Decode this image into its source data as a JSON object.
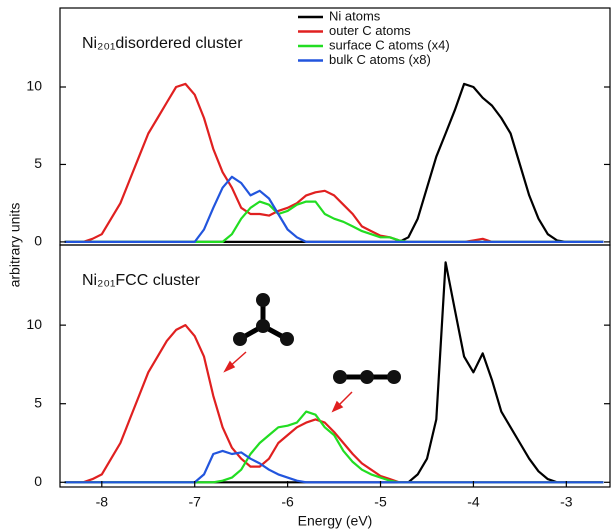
{
  "chart_data": [
    {
      "type": "line",
      "title": "Ni₂₀₁disordered cluster",
      "ylabel": "arbitrary units",
      "legend": "upper center",
      "xlim": [
        -8.45,
        -2.53
      ],
      "ylim": [
        -0.2,
        15.1
      ],
      "yticks": [
        0,
        5,
        10
      ],
      "x": [
        -8.4,
        -8.3,
        -8.2,
        -8.1,
        -8.0,
        -7.9,
        -7.8,
        -7.7,
        -7.6,
        -7.5,
        -7.4,
        -7.3,
        -7.2,
        -7.1,
        -7.0,
        -6.9,
        -6.8,
        -6.7,
        -6.6,
        -6.5,
        -6.4,
        -6.3,
        -6.2,
        -6.1,
        -6.0,
        -5.9,
        -5.8,
        -5.7,
        -5.6,
        -5.5,
        -5.4,
        -5.3,
        -5.2,
        -5.1,
        -5.0,
        -4.9,
        -4.8,
        -4.7,
        -4.6,
        -4.5,
        -4.4,
        -4.3,
        -4.2,
        -4.1,
        -4.0,
        -3.9,
        -3.8,
        -3.7,
        -3.6,
        -3.5,
        -3.4,
        -3.3,
        -3.2,
        -3.1,
        -3.0,
        -2.9,
        -2.8,
        -2.7,
        -2.6
      ],
      "series": [
        {
          "name": "Ni atoms",
          "color": "#000000",
          "values": [
            0,
            0,
            0,
            0,
            0,
            0,
            0,
            0,
            0,
            0,
            0,
            0,
            0,
            0,
            0,
            0,
            0,
            0,
            0,
            0,
            0,
            0,
            0,
            0,
            0,
            0,
            0,
            0,
            0,
            0,
            0,
            0,
            0,
            0,
            0,
            0,
            0,
            0.3,
            1.5,
            3.5,
            5.5,
            7,
            8.5,
            10.2,
            10,
            9.3,
            8.8,
            8,
            7,
            5,
            3,
            1.5,
            0.5,
            0.1,
            0,
            0,
            0,
            0,
            0
          ]
        },
        {
          "name": "outer C atoms",
          "color": "#e02020",
          "values": [
            0,
            0,
            0,
            0.2,
            0.5,
            1.5,
            2.5,
            4,
            5.5,
            7,
            8,
            9,
            10,
            10.2,
            9.5,
            8,
            6,
            4.5,
            3.5,
            2.2,
            1.8,
            1.8,
            1.7,
            2,
            2.2,
            2.5,
            3,
            3.2,
            3.3,
            3,
            2.4,
            1.8,
            1,
            0.7,
            0.4,
            0.3,
            0.1,
            0,
            0,
            0,
            0,
            0,
            0,
            0,
            0.1,
            0.2,
            0,
            0,
            0,
            0,
            0,
            0,
            0,
            0,
            0,
            0,
            0,
            0,
            0
          ]
        },
        {
          "name": "surface C atoms (x4)",
          "color": "#22dd22",
          "values": [
            0,
            0,
            0,
            0,
            0,
            0,
            0,
            0,
            0,
            0,
            0,
            0,
            0,
            0,
            0,
            0,
            0,
            0,
            0.5,
            1.5,
            2.2,
            2.6,
            2.4,
            1.8,
            2.0,
            2.4,
            2.6,
            2.6,
            1.8,
            1.5,
            1.3,
            1.0,
            0.7,
            0.5,
            0.3,
            0.3,
            0.1,
            0,
            0,
            0,
            0,
            0,
            0,
            0,
            0,
            0,
            0,
            0,
            0,
            0,
            0,
            0,
            0,
            0,
            0,
            0,
            0,
            0,
            0
          ]
        },
        {
          "name": "bulk C atoms (x8)",
          "color": "#2255dd",
          "values": [
            0,
            0,
            0,
            0,
            0,
            0,
            0,
            0,
            0,
            0,
            0,
            0,
            0,
            0,
            0,
            0.8,
            2.2,
            3.5,
            4.2,
            3.8,
            3.0,
            3.3,
            2.8,
            1.8,
            0.8,
            0.3,
            0,
            0,
            0,
            0,
            0,
            0,
            0,
            0,
            0,
            0,
            0,
            0,
            0,
            0,
            0,
            0,
            0,
            0,
            0,
            0,
            0,
            0,
            0,
            0,
            0,
            0,
            0,
            0,
            0,
            0,
            0,
            0,
            0
          ]
        }
      ]
    },
    {
      "type": "line",
      "title": "Ni₂₀₁FCC cluster",
      "xlabel": "Energy (eV)",
      "xlim": [
        -8.45,
        -2.53
      ],
      "ylim": [
        -0.3,
        15.1
      ],
      "yticks": [
        0,
        5,
        10
      ],
      "xticks": [
        -8,
        -7,
        -6,
        -5,
        -4,
        -3
      ],
      "x": [
        -8.4,
        -8.3,
        -8.2,
        -8.1,
        -8.0,
        -7.9,
        -7.8,
        -7.7,
        -7.6,
        -7.5,
        -7.4,
        -7.3,
        -7.2,
        -7.1,
        -7.0,
        -6.9,
        -6.8,
        -6.7,
        -6.6,
        -6.5,
        -6.4,
        -6.3,
        -6.2,
        -6.1,
        -6.0,
        -5.9,
        -5.8,
        -5.7,
        -5.6,
        -5.5,
        -5.4,
        -5.3,
        -5.2,
        -5.1,
        -5.0,
        -4.9,
        -4.8,
        -4.7,
        -4.6,
        -4.5,
        -4.4,
        -4.3,
        -4.2,
        -4.1,
        -4.0,
        -3.9,
        -3.8,
        -3.7,
        -3.6,
        -3.5,
        -3.4,
        -3.3,
        -3.2,
        -3.1,
        -3.0,
        -2.9,
        -2.8,
        -2.7,
        -2.6
      ],
      "series": [
        {
          "color": "#000000",
          "values": [
            0,
            0,
            0,
            0,
            0,
            0,
            0,
            0,
            0,
            0,
            0,
            0,
            0,
            0,
            0,
            0,
            0,
            0,
            0,
            0,
            0,
            0,
            0,
            0,
            0,
            0,
            0,
            0,
            0,
            0,
            0,
            0,
            0,
            0,
            0,
            0,
            0,
            0,
            0.5,
            1.5,
            4,
            14,
            11,
            8,
            7,
            8.2,
            6.5,
            4.5,
            3.5,
            2.5,
            1.5,
            0.7,
            0.2,
            0,
            0,
            0,
            0,
            0,
            0
          ]
        },
        {
          "color": "#e02020",
          "values": [
            0,
            0,
            0,
            0.2,
            0.5,
            1.5,
            2.5,
            4,
            5.5,
            7,
            8,
            9,
            9.7,
            10,
            9.3,
            8,
            5.5,
            3.5,
            2.2,
            1.5,
            1.0,
            1.0,
            1.5,
            2.5,
            3.0,
            3.5,
            3.8,
            4.0,
            3.8,
            3.2,
            2.5,
            1.8,
            1.2,
            0.8,
            0.4,
            0.2,
            0,
            0,
            0,
            0,
            0,
            0,
            0,
            0,
            0,
            0,
            0,
            0,
            0,
            0,
            0,
            0,
            0,
            0,
            0,
            0,
            0,
            0,
            0
          ]
        },
        {
          "color": "#22dd22",
          "values": [
            0,
            0,
            0,
            0,
            0,
            0,
            0,
            0,
            0,
            0,
            0,
            0,
            0,
            0,
            0,
            0,
            0,
            0.1,
            0.3,
            0.8,
            1.8,
            2.5,
            3.0,
            3.5,
            3.6,
            3.8,
            4.5,
            4.3,
            3.5,
            3.0,
            2.0,
            1.3,
            0.8,
            0.5,
            0.3,
            0.1,
            0,
            0,
            0,
            0,
            0,
            0,
            0,
            0,
            0,
            0,
            0,
            0,
            0,
            0,
            0,
            0,
            0,
            0,
            0,
            0,
            0,
            0,
            0
          ]
        },
        {
          "color": "#2255dd",
          "values": [
            0,
            0,
            0,
            0,
            0,
            0,
            0,
            0,
            0,
            0,
            0,
            0,
            0,
            0,
            0,
            0.5,
            1.8,
            2.0,
            1.8,
            1.9,
            1.5,
            1.2,
            0.8,
            0.5,
            0.3,
            0.1,
            0,
            0,
            0,
            0,
            0,
            0,
            0,
            0,
            0,
            0,
            0,
            0,
            0,
            0,
            0,
            0,
            0,
            0,
            0,
            0,
            0,
            0,
            0,
            0,
            0,
            0,
            0,
            0,
            0,
            0,
            0,
            0,
            0
          ]
        }
      ]
    }
  ]
}
